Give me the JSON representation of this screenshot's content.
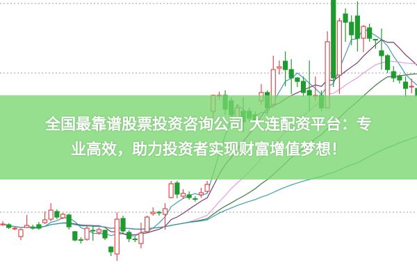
{
  "banner": {
    "line1": "全国最靠谱股票投资咨询公司 大连配资平台：专",
    "line2": "业高效，助力投资者实现财富增值梦想！",
    "background": "#78d66e"
  },
  "chart_data": {
    "type": "candlestick",
    "title": "",
    "grid": "dotted horizontal",
    "colors": {
      "up": "#e0474c",
      "down": "#1e9a2f",
      "ma5": "#3a9fb0",
      "ma10": "#7a3a6a",
      "ma20": "#e79be0",
      "ma30": "#3b7a3b",
      "ma60": "#3aa0a8"
    },
    "moving_averages": [
      5,
      10,
      20,
      30,
      60
    ],
    "candles_ohlc": [
      [
        7.8,
        8.2,
        7.5,
        7.8
      ],
      [
        7.7,
        7.9,
        7.1,
        7.3
      ],
      [
        7.1,
        7.4,
        6.9,
        7.2
      ],
      [
        6.0,
        7.2,
        5.5,
        7.0
      ],
      [
        7.3,
        9.1,
        7.2,
        7.6
      ],
      [
        7.3,
        7.7,
        7.0,
        7.2
      ],
      [
        7.7,
        8.1,
        7.0,
        7.2
      ],
      [
        8.0,
        9.6,
        7.8,
        8.4
      ],
      [
        8.5,
        10.8,
        8.2,
        9.8
      ],
      [
        9.6,
        9.9,
        8.5,
        8.8
      ],
      [
        8.7,
        9.4,
        8.5,
        9.2
      ],
      [
        9.1,
        9.3,
        7.0,
        7.4
      ],
      [
        6.7,
        6.8,
        5.3,
        5.5
      ],
      [
        5.55,
        5.9,
        5.0,
        5.5
      ],
      [
        5.6,
        7.6,
        5.4,
        7.2
      ],
      [
        6.9,
        7.6,
        5.4,
        6.8
      ],
      [
        6.6,
        7.3,
        6.3,
        7.0
      ],
      [
        6.9,
        7.0,
        5.5,
        5.8
      ],
      [
        4.5,
        4.6,
        3.2,
        3.8
      ],
      [
        3.5,
        9.5,
        2.5,
        8.5
      ],
      [
        8.6,
        9.0,
        6.5,
        6.8
      ],
      [
        6.6,
        6.9,
        5.2,
        5.7
      ],
      [
        5.65,
        6.0,
        5.2,
        5.6
      ],
      [
        5.0,
        8.0,
        4.3,
        6.5
      ],
      [
        6.7,
        9.0,
        6.5,
        8.8
      ],
      [
        9.3,
        10.2,
        9.0,
        9.5
      ],
      [
        9.5,
        9.7,
        9.0,
        9.45
      ],
      [
        9.2,
        10.8,
        7.0,
        10.0
      ],
      [
        11.6,
        14.0,
        11.5,
        13.6
      ],
      [
        13.7,
        14.0,
        11.5,
        12.1
      ],
      [
        11.8,
        12.8,
        11.4,
        12.2
      ],
      [
        12.0,
        12.5,
        11.3,
        11.6
      ],
      [
        11.45,
        11.8,
        11.0,
        11.4
      ],
      [
        12.0,
        13.0,
        11.6,
        12.3
      ],
      [
        12.5,
        14.0,
        12.3,
        13.5
      ],
      [
        24.0,
        26.4,
        23.0,
        26.3
      ],
      [
        26.2,
        26.8,
        25.6,
        26.3
      ],
      [
        26.3,
        27.0,
        23.5,
        24.3
      ],
      [
        25.5,
        26.0,
        22.8,
        23.5
      ],
      [
        23.0,
        25.0,
        22.5,
        24.5
      ],
      [
        24.0,
        26.0,
        21.0,
        22.5
      ],
      [
        24.0,
        24.5,
        22.5,
        23.0
      ],
      [
        23.5,
        24.0,
        22.0,
        22.5
      ],
      [
        25.5,
        27.9,
        25.0,
        26.7
      ],
      [
        26.7,
        27.0,
        23.5,
        24.5
      ],
      [
        25.0,
        32.0,
        24.5,
        30.0
      ],
      [
        30.2,
        31.3,
        29.3,
        30.4
      ],
      [
        31.2,
        32.6,
        27.6,
        30.0
      ],
      [
        30.0,
        31.5,
        26.5,
        28.8
      ],
      [
        28.8,
        28.9,
        27.5,
        28.3
      ],
      [
        28.3,
        29.0,
        26.1,
        26.7
      ],
      [
        27.0,
        31.3,
        24.0,
        26.3
      ],
      [
        26.2,
        29.0,
        25.5,
        26.3
      ],
      [
        26.3,
        27.0,
        24.0,
        24.5
      ],
      [
        24.5,
        35.5,
        24.5,
        34.0
      ],
      [
        40.0,
        40.1,
        27.5,
        28.8
      ],
      [
        29.2,
        37.4,
        26.5,
        37.0
      ],
      [
        38.0,
        38.8,
        34.0,
        36.8
      ],
      [
        36.8,
        37.8,
        33.5,
        35.0
      ],
      [
        37.7,
        39.8,
        32.6,
        34.5
      ],
      [
        34.5,
        36.4,
        32.5,
        36.2
      ],
      [
        36.0,
        36.6,
        34.0,
        34.5
      ],
      [
        34.35,
        34.4,
        33.0,
        34.3
      ],
      [
        32.7,
        35.9,
        30.0,
        32.0
      ],
      [
        32.0,
        32.2,
        29.5,
        30.0
      ],
      [
        29.7,
        30.5,
        28.2,
        28.8
      ],
      [
        29.0,
        29.3,
        28.0,
        28.5
      ],
      [
        28.2,
        29.0,
        26.0,
        27.3
      ],
      [
        27.5,
        28.7,
        26.6,
        27.6
      ],
      [
        27.3,
        28.0,
        25.5,
        26.2
      ]
    ]
  }
}
